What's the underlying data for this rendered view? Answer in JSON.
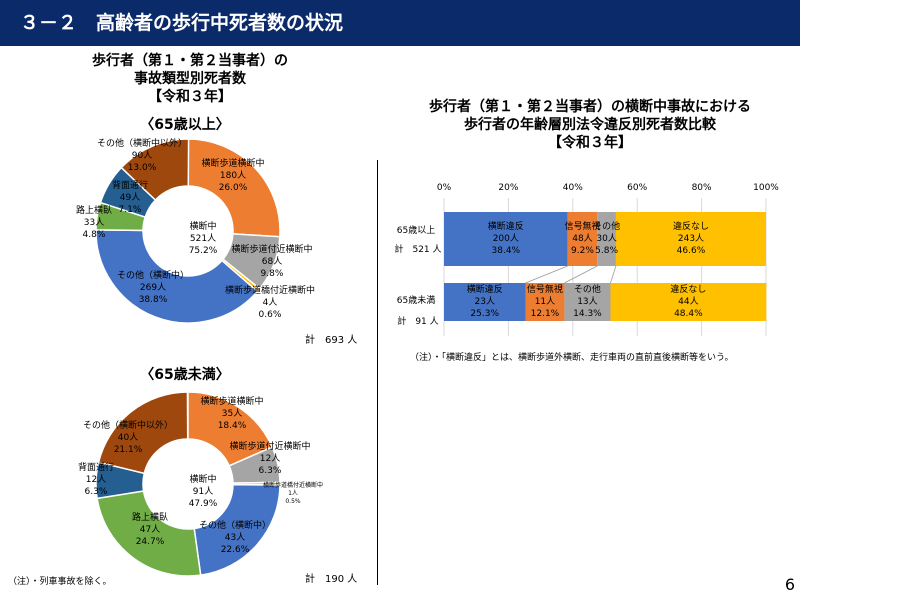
{
  "header": {
    "title": "３－２　高齢者の歩行中死者数の状況"
  },
  "left": {
    "title_lines": [
      "歩行者（第１・第２当事者）の",
      "事故類型別死者数",
      "【令和３年】"
    ],
    "charts": [
      {
        "subtitle": "〈65歳以上〉",
        "center": [
          "横断中",
          "521人",
          "75.2%"
        ],
        "total": "計　693 人",
        "slices": [
          {
            "label": "横断歩道横断中",
            "count": "180人",
            "pct": 26.0,
            "pct_label": "26.0%",
            "color": "#ED7D31"
          },
          {
            "label": "横断歩道付近横断中",
            "count": "68人",
            "pct": 9.8,
            "pct_label": "9.8%",
            "color": "#A5A5A5"
          },
          {
            "label": "横断歩道橋付近横断中",
            "count": "4人",
            "pct": 0.6,
            "pct_label": "0.6%",
            "color": "#FFC000"
          },
          {
            "label": "その他（横断中）",
            "count": "269人",
            "pct": 38.8,
            "pct_label": "38.8%",
            "color": "#4472C4"
          },
          {
            "label": "路上横臥",
            "count": "33人",
            "pct": 4.8,
            "pct_label": "4.8%",
            "color": "#70AD47"
          },
          {
            "label": "背面通行",
            "count": "49人",
            "pct": 7.1,
            "pct_label": "7.1%",
            "color": "#255E91"
          },
          {
            "label": "その他（横断中以外）",
            "count": "90人",
            "pct": 13.0,
            "pct_label": "13.0%",
            "color": "#9E480E"
          }
        ]
      },
      {
        "subtitle": "〈65歳未満〉",
        "center": [
          "横断中",
          "91人",
          "47.9%"
        ],
        "total": "計　190 人",
        "slices": [
          {
            "label": "横断歩道横断中",
            "count": "35人",
            "pct": 18.4,
            "pct_label": "18.4%",
            "color": "#ED7D31"
          },
          {
            "label": "横断歩道付近横断中",
            "count": "12人",
            "pct": 6.3,
            "pct_label": "6.3%",
            "color": "#A5A5A5"
          },
          {
            "label": "横断歩道橋付近横断中",
            "count": "1人",
            "pct": 0.5,
            "pct_label": "0.5%",
            "color": "#FFC000"
          },
          {
            "label": "その他（横断中）",
            "count": "43人",
            "pct": 22.6,
            "pct_label": "22.6%",
            "color": "#4472C4"
          },
          {
            "label": "路上横臥",
            "count": "47人",
            "pct": 24.7,
            "pct_label": "24.7%",
            "color": "#70AD47"
          },
          {
            "label": "背面通行",
            "count": "12人",
            "pct": 6.3,
            "pct_label": "6.3%",
            "color": "#255E91"
          },
          {
            "label": "その他（横断中以外）",
            "count": "40人",
            "pct": 21.1,
            "pct_label": "21.1%",
            "color": "#9E480E"
          }
        ]
      }
    ],
    "note": "（注）・列車事故を除く。"
  },
  "chart_data": {
    "type": "bar",
    "stacked": true,
    "orientation": "horizontal",
    "title": "歩行者（第１・第２当事者）の横断中事故における\n歩行者の年齢層別法令違反別死者数比較\n【令和３年】",
    "title_lines": [
      "歩行者（第１・第２当事者）の横断中事故における",
      "歩行者の年齢層別法令違反別死者数比較",
      "【令和３年】"
    ],
    "xlim": [
      0,
      100
    ],
    "xticks": [
      "0%",
      "20%",
      "40%",
      "60%",
      "80%",
      "100%"
    ],
    "categories": [
      "65歳以上",
      "65歳未満"
    ],
    "category_totals": [
      "計　521 人",
      "計　91 人"
    ],
    "series": [
      {
        "name": "横断違反",
        "color": "#4472C4",
        "counts": [
          "200人",
          "23人"
        ],
        "values": [
          38.4,
          25.3
        ]
      },
      {
        "name": "信号無視",
        "color": "#ED7D31",
        "counts": [
          "48人",
          "11人"
        ],
        "values": [
          9.2,
          12.1
        ]
      },
      {
        "name": "その他",
        "color": "#A5A5A5",
        "counts": [
          "30人",
          "13人"
        ],
        "values": [
          5.8,
          14.3
        ]
      },
      {
        "name": "違反なし",
        "color": "#FFC000",
        "counts": [
          "243人",
          "44人"
        ],
        "values": [
          46.6,
          48.4
        ]
      }
    ],
    "note": "（注）・「横断違反」とは、横断歩道外横断、走行車両の直前直後横断等をいう。"
  },
  "page_number": "6"
}
